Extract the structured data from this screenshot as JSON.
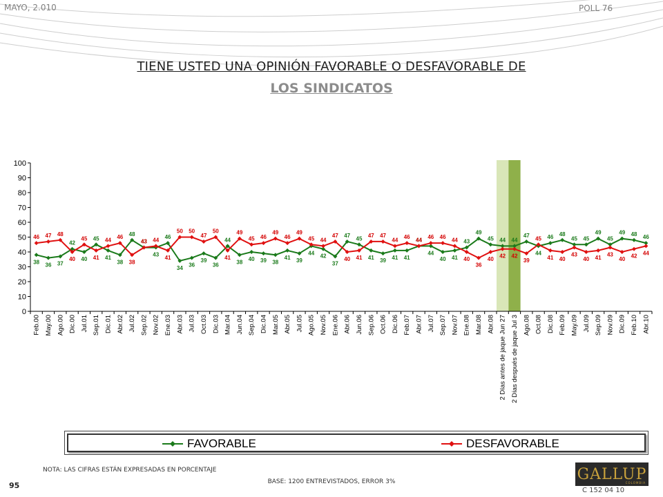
{
  "header": {
    "date": "MAYO, 2.010",
    "poll": "POLL 76"
  },
  "title": {
    "line1": "TIENE USTED UNA OPINIÓN FAVORABLE O DESFAVORABLE DE",
    "line2": "LOS SINDICATOS"
  },
  "note": "NOTA: LAS CIFRAS ESTÁN EXPRESADAS EN PORCENTAJE",
  "base": "BASE: 1200 ENTREVISTADOS, ERROR 3%",
  "page_number": "95",
  "logo": {
    "text": "GALLUP",
    "subtext": "COLOMBIA"
  },
  "code": "C 152 04 10",
  "colors": {
    "favorable": "#1a7a1a",
    "desfavorable": "#e01010",
    "label_fav": "#1a7a1a",
    "label_des": "#d40000",
    "band_before": "#d9e6b8",
    "band_after": "#8fb04a"
  },
  "chart_data": {
    "type": "line",
    "ylim": [
      0,
      100
    ],
    "yticks": [
      0,
      10,
      20,
      30,
      40,
      50,
      60,
      70,
      80,
      90,
      100
    ],
    "grid": false,
    "legend_position": "bottom",
    "categories": [
      "Feb.00",
      "May.00",
      "Ago.00",
      "Dic.00",
      "Jul.01",
      "Sep.01",
      "Dic.01",
      "Abr.02",
      "Jul.02",
      "Sep.02",
      "Nov.02",
      "Ene.03",
      "Abr.03",
      "Jul.03",
      "Oct.03",
      "Dic.03",
      "Mar.04",
      "Jun.04",
      "Sep.04",
      "Dic.04",
      "Mar.05",
      "Abr.05",
      "Jul.05",
      "Ago.05",
      "Nov.05",
      "Ene.06",
      "Abr.06",
      "Jun.06",
      "Sep.06",
      "Oct.06",
      "Dic.06",
      "Feb.07",
      "Abr.07",
      "Jul.07",
      "Sep.07",
      "Nov.07",
      "Ene.08",
      "Mar.08",
      "Abr.08",
      "2 Días antes de jaque Jun 27",
      "2 Días después de jaque Jul 3",
      "Ago.08",
      "Oct.08",
      "Dic.08",
      "Feb.09",
      "May.09",
      "Jul.09",
      "Sep.09",
      "Nov.09",
      "Dic.09",
      "Feb.10",
      "Abr.10"
    ],
    "highlight_bands": [
      39,
      40
    ],
    "series": [
      {
        "name": "FAVORABLE",
        "values": [
          38,
          36,
          37,
          42,
          40,
          45,
          41,
          38,
          48,
          43,
          43,
          46,
          34,
          36,
          39,
          36,
          44,
          38,
          40,
          39,
          38,
          41,
          39,
          44,
          42,
          37,
          47,
          45,
          41,
          39,
          41,
          41,
          44,
          44,
          40,
          41,
          43,
          49,
          45,
          44,
          44,
          47,
          44,
          46,
          48,
          45,
          45,
          49,
          45,
          49,
          48,
          46
        ]
      },
      {
        "name": "DESFAVORABLE",
        "values": [
          46,
          47,
          48,
          40,
          45,
          41,
          44,
          46,
          38,
          43,
          44,
          41,
          50,
          50,
          47,
          50,
          41,
          49,
          45,
          46,
          49,
          46,
          49,
          45,
          44,
          47,
          40,
          41,
          47,
          47,
          44,
          46,
          44,
          46,
          46,
          44,
          40,
          36,
          40,
          42,
          42,
          39,
          45,
          41,
          40,
          43,
          40,
          41,
          43,
          40,
          42,
          44
        ]
      }
    ]
  }
}
